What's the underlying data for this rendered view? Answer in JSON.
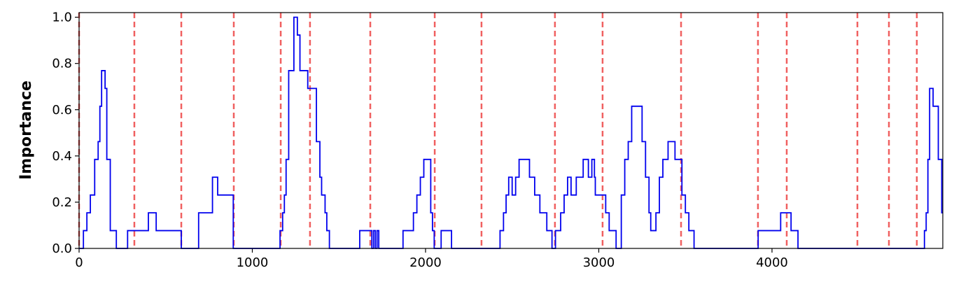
{
  "chart_data": {
    "type": "line",
    "step": "post",
    "y_label": "Importance",
    "xlim": [
      0,
      4986
    ],
    "ylim": [
      0,
      1.02
    ],
    "xticks": [
      0,
      1000,
      2000,
      3000,
      4000
    ],
    "yticks": [
      {
        "value": 0,
        "label": "0.0"
      },
      0.2,
      0.4,
      0.6,
      0.8,
      {
        "value": 1,
        "label": "1.0"
      }
    ],
    "vline_color": "#f06060",
    "vlines": [
      0,
      319,
      590,
      893,
      1164,
      1333,
      1681,
      2053,
      2323,
      2747,
      3022,
      3475,
      3919,
      4085,
      4493,
      4675,
      4836
    ],
    "series": [
      {
        "color": "#0000ee",
        "x": [
          0,
          25,
          45,
          65,
          90,
          110,
          120,
          130,
          150,
          160,
          180,
          215,
          280,
          400,
          445,
          590,
          690,
          770,
          800,
          890,
          1160,
          1175,
          1185,
          1195,
          1210,
          1240,
          1260,
          1275,
          1320,
          1370,
          1390,
          1400,
          1420,
          1430,
          1445,
          1620,
          1690,
          1700,
          1710,
          1720,
          1730,
          1870,
          1930,
          1950,
          1970,
          1990,
          2030,
          2040,
          2050,
          2090,
          2150,
          2430,
          2450,
          2465,
          2480,
          2500,
          2520,
          2540,
          2600,
          2630,
          2660,
          2700,
          2730,
          2750,
          2780,
          2800,
          2820,
          2840,
          2870,
          2910,
          2940,
          2960,
          2975,
          2980,
          3040,
          3060,
          3100,
          3130,
          3150,
          3170,
          3190,
          3250,
          3270,
          3290,
          3300,
          3330,
          3350,
          3370,
          3400,
          3440,
          3480,
          3500,
          3520,
          3550,
          3920,
          4050,
          4110,
          4150,
          4880,
          4890,
          4900,
          4910,
          4930,
          4960,
          4980
        ],
        "values": [
          0,
          0.077,
          0.154,
          0.231,
          0.385,
          0.462,
          0.615,
          0.769,
          0.692,
          0.385,
          0.077,
          0,
          0.077,
          0.154,
          0.077,
          0,
          0.154,
          0.308,
          0.231,
          0,
          0.077,
          0.154,
          0.231,
          0.385,
          0.769,
          1.0,
          0.923,
          0.769,
          0.692,
          0.462,
          0.308,
          0.231,
          0.154,
          0.077,
          0,
          0.077,
          0,
          0.077,
          0,
          0.077,
          0,
          0.077,
          0.154,
          0.231,
          0.308,
          0.385,
          0.154,
          0.077,
          0,
          0.077,
          0,
          0.077,
          0.154,
          0.231,
          0.308,
          0.231,
          0.308,
          0.385,
          0.308,
          0.231,
          0.154,
          0.077,
          0,
          0.077,
          0.154,
          0.231,
          0.308,
          0.231,
          0.308,
          0.385,
          0.308,
          0.385,
          0.308,
          0.231,
          0.154,
          0.077,
          0,
          0.231,
          0.385,
          0.462,
          0.615,
          0.462,
          0.308,
          0.154,
          0.077,
          0.154,
          0.308,
          0.385,
          0.462,
          0.385,
          0.231,
          0.154,
          0.077,
          0,
          0.077,
          0.154,
          0.077,
          0,
          0.077,
          0.154,
          0.385,
          0.692,
          0.615,
          0.385,
          0.154
        ]
      }
    ]
  }
}
